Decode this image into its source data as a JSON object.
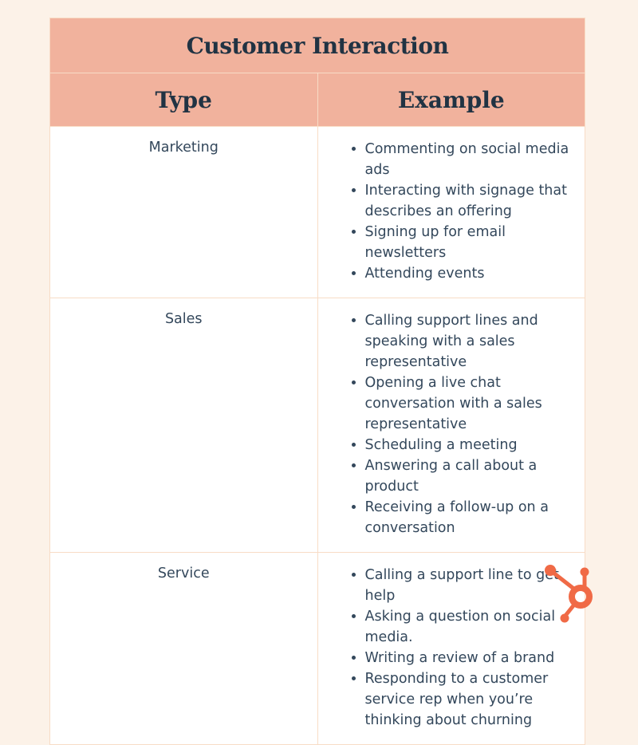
{
  "table": {
    "title": "Customer Interaction",
    "headers": [
      "Type",
      "Example"
    ],
    "rows": [
      {
        "type": "Marketing",
        "examples": [
          "Commenting on social media ads",
          "Interacting with signage that describes an offering",
          "Signing up for email newsletters",
          "Attending events"
        ]
      },
      {
        "type": "Sales",
        "examples": [
          "Calling support lines and speaking with a sales representative",
          "Opening a live chat conversation with a sales representative",
          "Scheduling a meeting",
          "Answering a call about a product",
          "Receiving a follow-up on a conversation"
        ]
      },
      {
        "type": "Service",
        "examples": [
          "Calling a support line to get help",
          "Asking a question on social media.",
          "Writing a review of a brand",
          "Responding to a customer service rep when you’re thinking about churning"
        ]
      }
    ]
  },
  "logo": {
    "name": "hubspot-sprocket-icon",
    "color": "#f06a46"
  }
}
